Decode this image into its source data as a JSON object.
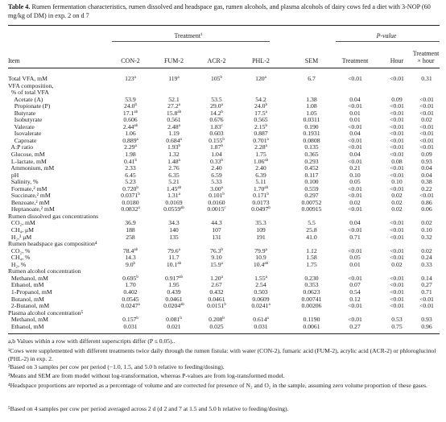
{
  "caption": {
    "label": "Table 4.",
    "text": "Rumen fermentation characteristics, rumen dissolved and headspace gas, rumen alcohols, and plasma alcohols of dairy cows fed a diet with 3-NOP (60 mg/kg of DM) in exp. 2 on d 7"
  },
  "header": {
    "group_treatment": "Treatment",
    "group_treatment_sup": "1",
    "group_pvalue": "P-value",
    "col_item": "Item",
    "col_con": "CON-2",
    "col_fum": "FUM-2",
    "col_acr": "ACR-2",
    "col_phl": "PHL-2",
    "col_sem": "SEM",
    "col_treatment": "Treatment",
    "col_hour": "Hour",
    "col_txh_1": "Treatment",
    "col_txh_2": "× hour"
  },
  "rows": [
    {
      "label": "Total VFA, mM",
      "values": [
        [
          "123",
          "a"
        ],
        [
          "119",
          "a"
        ],
        [
          "105",
          "b"
        ],
        [
          "120",
          "a"
        ],
        [
          "6.7",
          ""
        ],
        [
          "<0.01",
          ""
        ],
        [
          "<0.01",
          ""
        ],
        [
          "0.31",
          ""
        ]
      ]
    },
    {
      "label": "VFA composition,",
      "values": []
    },
    {
      "label": "  % of total VFA",
      "values": []
    },
    {
      "label": "    Acetate (A)",
      "values": [
        [
          "53.9",
          ""
        ],
        [
          "52.1",
          ""
        ],
        [
          "53.5",
          ""
        ],
        [
          "54.2",
          ""
        ],
        [
          "1.38",
          ""
        ],
        [
          "0.04",
          ""
        ],
        [
          "0.09",
          ""
        ],
        [
          "<0.01",
          ""
        ]
      ]
    },
    {
      "label": "    Propionate (P)",
      "values": [
        [
          "24.0",
          "b"
        ],
        [
          "27.2",
          "a"
        ],
        [
          "29.0",
          "a"
        ],
        [
          "24.0",
          "b"
        ],
        [
          "1.08",
          ""
        ],
        [
          "<0.01",
          ""
        ],
        [
          "<0.01",
          ""
        ],
        [
          "<0.01",
          ""
        ]
      ]
    },
    {
      "label": "    Butyrate",
      "values": [
        [
          "17.1",
          "ab"
        ],
        [
          "15.8",
          "ab"
        ],
        [
          "14.2",
          "b"
        ],
        [
          "17.5",
          "a"
        ],
        [
          "1.05",
          ""
        ],
        [
          "0.01",
          ""
        ],
        [
          "<0.01",
          ""
        ],
        [
          "<0.01",
          ""
        ]
      ]
    },
    {
      "label": "    Isobutyrate",
      "values": [
        [
          "0.606",
          ""
        ],
        [
          "0.561",
          ""
        ],
        [
          "0.676",
          ""
        ],
        [
          "0.565",
          ""
        ],
        [
          "0.0311",
          ""
        ],
        [
          "0.01",
          ""
        ],
        [
          "<0.01",
          ""
        ],
        [
          "0.02",
          ""
        ]
      ]
    },
    {
      "label": "    Valerate",
      "values": [
        [
          "2.44",
          "ab"
        ],
        [
          "2.48",
          "a"
        ],
        [
          "1.83",
          "c"
        ],
        [
          "2.15",
          "b"
        ],
        [
          "0.190",
          ""
        ],
        [
          "<0.01",
          ""
        ],
        [
          "<0.01",
          ""
        ],
        [
          "<0.01",
          ""
        ]
      ]
    },
    {
      "label": "    Isovalerate",
      "values": [
        [
          "1.06",
          ""
        ],
        [
          "1.19",
          ""
        ],
        [
          "0.603",
          ""
        ],
        [
          "0.887",
          ""
        ],
        [
          "0.1931",
          ""
        ],
        [
          "0.04",
          ""
        ],
        [
          "<0.01",
          ""
        ],
        [
          "<0.01",
          ""
        ]
      ]
    },
    {
      "label": "    Caproate",
      "values": [
        [
          "0.889",
          "a"
        ],
        [
          "0.684",
          "a"
        ],
        [
          "0.155",
          "b"
        ],
        [
          "0.701",
          "a"
        ],
        [
          "0.0808",
          ""
        ],
        [
          "<0.01",
          ""
        ],
        [
          "<0.01",
          ""
        ],
        [
          "<0.01",
          ""
        ]
      ]
    },
    {
      "label": "  A:P ratio",
      "values": [
        [
          "2.29",
          "a"
        ],
        [
          "1.93",
          "b"
        ],
        [
          "1.87",
          "b"
        ],
        [
          "2.28",
          "a"
        ],
        [
          "0.135",
          ""
        ],
        [
          "<0.01",
          ""
        ],
        [
          "<0.01",
          ""
        ],
        [
          "<0.01",
          ""
        ]
      ]
    },
    {
      "label": "  Glucose, mM",
      "values": [
        [
          "1.98",
          ""
        ],
        [
          "1.32",
          ""
        ],
        [
          "1.04",
          ""
        ],
        [
          "1.75",
          ""
        ],
        [
          "0.365",
          ""
        ],
        [
          "0.04",
          ""
        ],
        [
          "<0.01",
          ""
        ],
        [
          "0.09",
          ""
        ]
      ]
    },
    {
      "label": "  L-lactate, mM",
      "values": [
        [
          "0.41",
          "b"
        ],
        [
          "1.48",
          "a"
        ],
        [
          "0.33",
          "b"
        ],
        [
          "1.06",
          "ab"
        ],
        [
          "0.293",
          ""
        ],
        [
          "<0.01",
          ""
        ],
        [
          "0.08",
          ""
        ],
        [
          "0.93",
          ""
        ]
      ]
    },
    {
      "label": "  Ammonium, mM",
      "values": [
        [
          "2.33",
          ""
        ],
        [
          "2.76",
          ""
        ],
        [
          "2.40",
          ""
        ],
        [
          "2.40",
          ""
        ],
        [
          "0.452",
          ""
        ],
        [
          "0.21",
          ""
        ],
        [
          "<0.01",
          ""
        ],
        [
          "0.04",
          ""
        ]
      ]
    },
    {
      "label": "  pH",
      "values": [
        [
          "6.45",
          ""
        ],
        [
          "6.35",
          ""
        ],
        [
          "6.59",
          ""
        ],
        [
          "6.39",
          ""
        ],
        [
          "0.117",
          ""
        ],
        [
          "0.10",
          ""
        ],
        [
          "<0.01",
          ""
        ],
        [
          "0.04",
          ""
        ]
      ]
    },
    {
      "label": "  Salinity, %",
      "values": [
        [
          "5.23",
          ""
        ],
        [
          "5.21",
          ""
        ],
        [
          "5.33",
          ""
        ],
        [
          "5.11",
          ""
        ],
        [
          "0.100",
          ""
        ],
        [
          "0.05",
          ""
        ],
        [
          "0.10",
          ""
        ],
        [
          "0.38",
          ""
        ]
      ]
    },
    {
      "label": "  Formate,² mM",
      "values": [
        [
          "0.720",
          "b"
        ],
        [
          "1.45",
          "ab"
        ],
        [
          "3.00",
          "a"
        ],
        [
          "1.70",
          "ab"
        ],
        [
          "0.559",
          ""
        ],
        [
          "<0.01",
          ""
        ],
        [
          "<0.01",
          ""
        ],
        [
          "0.22",
          ""
        ]
      ]
    },
    {
      "label": "  Succinate,² mM",
      "values": [
        [
          "0.0371",
          "b"
        ],
        [
          "1.31",
          "a"
        ],
        [
          "0.101",
          "b"
        ],
        [
          "0.171",
          "b"
        ],
        [
          "0.297",
          ""
        ],
        [
          "<0.01",
          ""
        ],
        [
          "0.02",
          ""
        ],
        [
          "<0.01",
          ""
        ]
      ]
    },
    {
      "label": "  Benzoate,² mM",
      "values": [
        [
          "0.0180",
          ""
        ],
        [
          "0.0169",
          ""
        ],
        [
          "0.0160",
          ""
        ],
        [
          "0.0173",
          ""
        ],
        [
          "0.00752",
          ""
        ],
        [
          "0.02",
          ""
        ],
        [
          "0.02",
          ""
        ],
        [
          "0.86",
          ""
        ]
      ]
    },
    {
      "label": "  Heptanoate,² mM",
      "values": [
        [
          "0.0832",
          "a"
        ],
        [
          "0.0559",
          "ab"
        ],
        [
          "0.0015",
          "c"
        ],
        [
          "0.0497",
          "b"
        ],
        [
          "0.00915",
          ""
        ],
        [
          "<0.01",
          ""
        ],
        [
          "0.02",
          ""
        ],
        [
          "0.06",
          ""
        ]
      ]
    },
    {
      "label": "Rumen dissolved gas concentrations",
      "values": []
    },
    {
      "label": "  CO₂, mM",
      "values": [
        [
          "36.9",
          ""
        ],
        [
          "34.3",
          ""
        ],
        [
          "44.3",
          ""
        ],
        [
          "35.3",
          ""
        ],
        [
          "5.5",
          ""
        ],
        [
          "0.04",
          ""
        ],
        [
          "<0.01",
          ""
        ],
        [
          "0.02",
          ""
        ]
      ]
    },
    {
      "label": "  CH₄, μM",
      "values": [
        [
          "188",
          ""
        ],
        [
          "140",
          ""
        ],
        [
          "107",
          ""
        ],
        [
          "109",
          ""
        ],
        [
          "25.8",
          ""
        ],
        [
          "<0.01",
          ""
        ],
        [
          "<0.01",
          ""
        ],
        [
          "0.10",
          ""
        ]
      ]
    },
    {
      "label": "  H₂,³ μM",
      "values": [
        [
          "258",
          ""
        ],
        [
          "135",
          ""
        ],
        [
          "131",
          ""
        ],
        [
          "191",
          ""
        ],
        [
          "41.0",
          ""
        ],
        [
          "0.71",
          ""
        ],
        [
          "<0.01",
          ""
        ],
        [
          "0.32",
          ""
        ]
      ]
    },
    {
      "label": "Rumen headspace gas composition⁴",
      "values": []
    },
    {
      "label": "  CO₂, %",
      "values": [
        [
          "78.4",
          "ab"
        ],
        [
          "79.6",
          "a"
        ],
        [
          "76.3",
          "b"
        ],
        [
          "79.9",
          "a"
        ],
        [
          "1.12",
          ""
        ],
        [
          "<0.01",
          ""
        ],
        [
          "<0.01",
          ""
        ],
        [
          "0.02",
          ""
        ]
      ]
    },
    {
      "label": "  CH₄, %",
      "values": [
        [
          "14.3",
          ""
        ],
        [
          "11.7",
          ""
        ],
        [
          "9.10",
          ""
        ],
        [
          "10.9",
          ""
        ],
        [
          "1.58",
          ""
        ],
        [
          "0.05",
          ""
        ],
        [
          "<0.01",
          ""
        ],
        [
          "0.24",
          ""
        ]
      ]
    },
    {
      "label": "  H₂, %",
      "values": [
        [
          "9.0",
          "b"
        ],
        [
          "10.1",
          "ab"
        ],
        [
          "15.9",
          "a"
        ],
        [
          "10.4",
          "ab"
        ],
        [
          "1.75",
          ""
        ],
        [
          "0.01",
          ""
        ],
        [
          "0.02",
          ""
        ],
        [
          "0.33",
          ""
        ]
      ]
    },
    {
      "label": "Rumen alcohol concentration",
      "values": []
    },
    {
      "label": "  Methanol, mM",
      "values": [
        [
          "0.695",
          "b"
        ],
        [
          "0.917",
          "ab"
        ],
        [
          "1.20",
          "a"
        ],
        [
          "1.55",
          "a"
        ],
        [
          "0.230",
          ""
        ],
        [
          "<0.01",
          ""
        ],
        [
          "<0.01",
          ""
        ],
        [
          "0.14",
          ""
        ]
      ]
    },
    {
      "label": "  Ethanol, mM",
      "values": [
        [
          "1.70",
          ""
        ],
        [
          "1.95",
          ""
        ],
        [
          "2.67",
          ""
        ],
        [
          "2.54",
          ""
        ],
        [
          "0.353",
          ""
        ],
        [
          "0.07",
          ""
        ],
        [
          "<0.01",
          ""
        ],
        [
          "0.27",
          ""
        ]
      ]
    },
    {
      "label": "  1-Propanol, mM",
      "values": [
        [
          "0.402",
          ""
        ],
        [
          "0.439",
          ""
        ],
        [
          "0.432",
          ""
        ],
        [
          "0.503",
          ""
        ],
        [
          "0.0623",
          ""
        ],
        [
          "0.54",
          ""
        ],
        [
          "<0.01",
          ""
        ],
        [
          "0.71",
          ""
        ]
      ]
    },
    {
      "label": "  Butanol, mM",
      "values": [
        [
          "0.0545",
          ""
        ],
        [
          "0.0461",
          ""
        ],
        [
          "0.0461",
          ""
        ],
        [
          "0.0609",
          ""
        ],
        [
          "0.00741",
          ""
        ],
        [
          "0.12",
          ""
        ],
        [
          "<0.01",
          ""
        ],
        [
          "<0.01",
          ""
        ]
      ]
    },
    {
      "label": "  2-Butanol, mM",
      "values": [
        [
          "0.0247",
          "a"
        ],
        [
          "0.0204",
          "ab"
        ],
        [
          "0.0151",
          "b"
        ],
        [
          "0.0241",
          "a"
        ],
        [
          "0.00206",
          ""
        ],
        [
          "<0.01",
          ""
        ],
        [
          "<0.01",
          ""
        ],
        [
          "<0.01",
          ""
        ]
      ]
    },
    {
      "label": "Plasma alcohol concentration⁵",
      "values": []
    },
    {
      "label": "  Methanol, mM",
      "values": [
        [
          "0.157",
          "b"
        ],
        [
          "0.081",
          "b"
        ],
        [
          "0.208",
          "b"
        ],
        [
          "0.614",
          "a"
        ],
        [
          "0.1190",
          ""
        ],
        [
          "<0.01",
          ""
        ],
        [
          "0.53",
          ""
        ],
        [
          "0.93",
          ""
        ]
      ]
    },
    {
      "label": "  Ethanol, mM",
      "values": [
        [
          "0.031",
          ""
        ],
        [
          "0.021",
          ""
        ],
        [
          "0.025",
          ""
        ],
        [
          "0.031",
          ""
        ],
        [
          "0.0061",
          ""
        ],
        [
          "0.27",
          ""
        ],
        [
          "0.75",
          ""
        ],
        [
          "0.96",
          ""
        ]
      ]
    }
  ],
  "footnotes": [
    "a,b Values within a row with different superscripts differ (P ≤ 0.05)..",
    "¹Cows were supplemented with different treatments twice daily through the rumen fistula: with water (CON-2), fumaric acid (FUM-2), acrylic acid (ACR-2) or phloroglucinol (PHL-2) in exp. 2.",
    "²Based on 3 samples per cow per period (−1.0, 1.5, and 5.0 h relative to feeding/dosing).",
    "³Means and SEM are from model without log-transformation, whereas P-values are from log-transformed model.",
    "⁴Headspace proportions are reported as a percentage of volume and are corrected for presence of N₂ and O₂ in the sample, assuming zero volume proportion of these gases.",
    "⁵Based on 4 samples per cow per period averaged across 2 d (d 2 and 7 at 1.5 and 5.0 h relative to feeding/dosing)."
  ]
}
